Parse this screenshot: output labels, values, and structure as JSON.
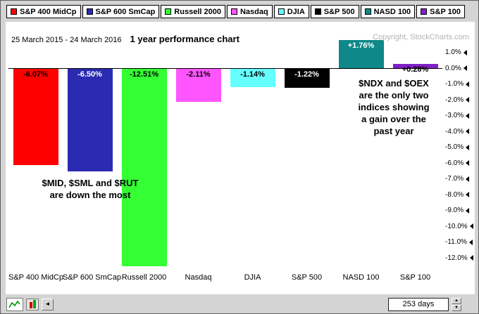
{
  "legend": {
    "items": [
      {
        "label": "S&P 400 MidCp",
        "color": "#ff0000"
      },
      {
        "label": "S&P 600 SmCap",
        "color": "#2b2bb2"
      },
      {
        "label": "Russell 2000",
        "color": "#33ff33"
      },
      {
        "label": "Nasdaq",
        "color": "#ff55ff"
      },
      {
        "label": "DJIA",
        "color": "#66ffff"
      },
      {
        "label": "S&P 500",
        "color": "#000000"
      },
      {
        "label": "NASD 100",
        "color": "#0e8888"
      },
      {
        "label": "S&P 100",
        "color": "#7f20c8"
      }
    ]
  },
  "chart_data": {
    "type": "bar",
    "title": "1 year performance chart",
    "date_range": "25 March 2015 - 24 March 2016",
    "copyright": "Copyright, StockCharts.com",
    "categories": [
      "S&P 400 MidCp",
      "S&P 600 SmCap",
      "Russell 2000",
      "Nasdaq",
      "DJIA",
      "S&P 500",
      "NASD 100",
      "S&P 100"
    ],
    "values": [
      -6.07,
      -6.5,
      -12.51,
      -2.11,
      -1.14,
      -1.22,
      1.76,
      0.28
    ],
    "value_labels": [
      "-6.07%",
      "-6.50%",
      "-12.51%",
      "-2.11%",
      "-1.14%",
      "-1.22%",
      "+1.76%",
      "+0.28%"
    ],
    "bar_colors": [
      "#ff0000",
      "#2b2bb2",
      "#33ff33",
      "#ff55ff",
      "#66ffff",
      "#000000",
      "#0e8888",
      "#7f20c8"
    ],
    "value_label_colors": [
      "#000000",
      "#ffffff",
      "#000000",
      "#000000",
      "#000000",
      "#ffffff",
      "#ffffff",
      "#000000"
    ],
    "ylabel": "",
    "xlabel": "",
    "ylim": [
      -12.9,
      1.87
    ],
    "yticks": [
      "1.0%",
      "0.0%",
      "-1.0%",
      "-2.0%",
      "-3.0%",
      "-4.0%",
      "-5.0%",
      "-6.0%",
      "-7.0%",
      "-8.0%",
      "-9.0%",
      "-10.0%",
      "-11.0%",
      "-12.0%"
    ],
    "grid": "zero-line-only",
    "legend_position": "top",
    "annotations": [
      {
        "id": "gainers",
        "text": "$NDX and $OEX\nare the only two\nindices showing\na gain over the\npast year"
      },
      {
        "id": "losers",
        "text": "$MID, $SML and $RUT\nare down the most"
      }
    ]
  },
  "toolbar": {
    "period_value": "253 days",
    "scroll_left_glyph": "◄",
    "spinner_up_glyph": "▲",
    "spinner_down_glyph": "▼"
  }
}
